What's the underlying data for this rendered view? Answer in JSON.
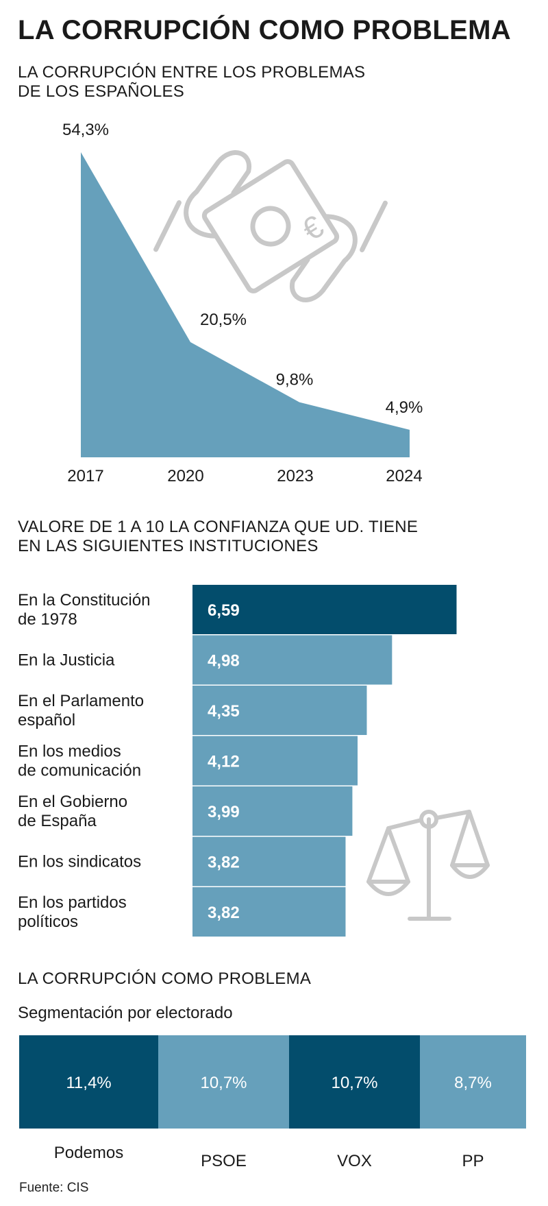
{
  "title": "LA CORRUPCIÓN COMO PROBLEMA",
  "colors": {
    "light": "#66a0bb",
    "dark": "#034d6c",
    "icon": "#c8c8c8",
    "text": "#1a1a1a"
  },
  "chart_data": [
    {
      "type": "area",
      "title": [
        "LA CORRUPCIÓN ENTRE LOS PROBLEMAS",
        "DE LOS ESPAÑOLES"
      ],
      "categories": [
        "2017",
        "2020",
        "2023",
        "2024"
      ],
      "values": [
        54.3,
        20.5,
        9.8,
        4.9
      ],
      "labels": [
        "54,3%",
        "20,5%",
        "9,8%",
        "4,9%"
      ],
      "ylim": [
        0,
        60
      ],
      "illustration": "euro-banknote-icon"
    },
    {
      "type": "bar",
      "orientation": "horizontal",
      "title": [
        "VALORE DE 1 A 10 LA CONFIANZA QUE UD. TIENE",
        "EN LAS SIGUIENTES INSTITUCIONES"
      ],
      "categories": [
        [
          "En la Constitución",
          "de 1978"
        ],
        [
          "En la Justicia"
        ],
        [
          "En el Parlamento",
          "español"
        ],
        [
          "En los medios",
          "de comunicación"
        ],
        [
          "En el Gobierno",
          "de España"
        ],
        [
          "En los sindicatos"
        ],
        [
          "En los partidos",
          "políticos"
        ]
      ],
      "values": [
        6.59,
        4.98,
        4.35,
        4.12,
        3.99,
        3.82,
        3.82
      ],
      "labels": [
        "6,59",
        "4,98",
        "4,35",
        "4,12",
        "3,99",
        "3,82",
        "3,82"
      ],
      "highlight": [
        true,
        false,
        false,
        false,
        false,
        false,
        false
      ],
      "xlim": [
        0,
        10
      ],
      "illustration": "scales-of-justice-icon"
    },
    {
      "type": "bar",
      "title": "LA CORRUPCIÓN COMO PROBLEMA",
      "subtitle": "Segmentación por electorado",
      "categories": [
        "Podemos",
        "PSOE",
        "VOX",
        "PP"
      ],
      "values": [
        11.4,
        10.7,
        10.7,
        8.7
      ],
      "labels": [
        "11,4%",
        "10,7%",
        "10,7%",
        "8,7%"
      ],
      "highlight": [
        true,
        false,
        true,
        false
      ]
    }
  ],
  "source": "Fuente: CIS"
}
